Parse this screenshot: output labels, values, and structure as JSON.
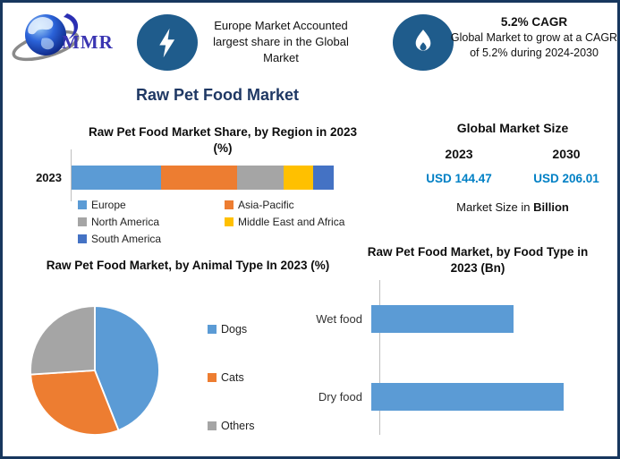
{
  "brand": {
    "logo_text": "MMR",
    "logo_icon": "globe-logo-icon"
  },
  "header": {
    "highlight": {
      "icon": "lightning-icon",
      "text": "Europe Market Accounted largest share in the Global Market"
    },
    "cagr": {
      "icon": "flame-icon",
      "title": "5.2% CAGR",
      "text": "Global Market to grow at a CAGR of 5.2% during 2024-2030"
    }
  },
  "main_title": "Raw Pet Food Market",
  "market_size": {
    "title": "Global Market Size",
    "year_start": "2023",
    "year_end": "2030",
    "value_start": "USD 144.47",
    "value_end": "USD 206.01",
    "value_color": "#0080C5",
    "note_prefix": "Market Size in ",
    "note_bold": "Billion"
  },
  "colors": {
    "border_navy": "#17375E",
    "title_navy": "#1F3864",
    "icon_circle_blue": "#1F5C8C",
    "accent_blue": "#5B9BD5",
    "accent_orange": "#ED7D31",
    "accent_gray": "#A5A5A5",
    "accent_yellow": "#FFC000",
    "accent_dark_blue": "#4472C4"
  },
  "chart_data": [
    {
      "id": "region_share",
      "type": "bar",
      "subtype": "stacked-horizontal",
      "title": "Raw Pet Food Market Share, by Region in 2023 (%)",
      "categories": [
        "2023"
      ],
      "series": [
        {
          "name": "Europe",
          "color": "#5B9BD5",
          "values": [
            34
          ]
        },
        {
          "name": "Asia-Pacific",
          "color": "#ED7D31",
          "values": [
            29
          ]
        },
        {
          "name": "North America",
          "color": "#A5A5A5",
          "values": [
            18
          ]
        },
        {
          "name": "Middle East and Africa",
          "color": "#FFC000",
          "values": [
            11
          ]
        },
        {
          "name": "South America",
          "color": "#4472C4",
          "values": [
            8
          ]
        }
      ],
      "xlim": [
        0,
        100
      ],
      "legend_position": "bottom",
      "grid": false
    },
    {
      "id": "animal_type",
      "type": "pie",
      "title": "Raw Pet Food Market, by Animal Type In 2023 (%)",
      "labels": [
        "Dogs",
        "Cats",
        "Others"
      ],
      "values": [
        44,
        30,
        26
      ],
      "colors": [
        "#5B9BD5",
        "#ED7D31",
        "#A5A5A5"
      ],
      "start_angle_deg": 0,
      "direction": "clockwise",
      "legend_position": "right"
    },
    {
      "id": "food_type",
      "type": "bar",
      "subtype": "horizontal",
      "title": "Raw Pet Food Market, by Food Type in 2023 (Bn)",
      "categories": [
        "Wet food",
        "Dry food"
      ],
      "values": [
        0.74,
        1.0
      ],
      "value_note": "bars unlabeled in source; values are relative lengths",
      "bar_color": "#5B9BD5",
      "xlim": [
        0,
        1.23
      ],
      "grid": false
    }
  ]
}
